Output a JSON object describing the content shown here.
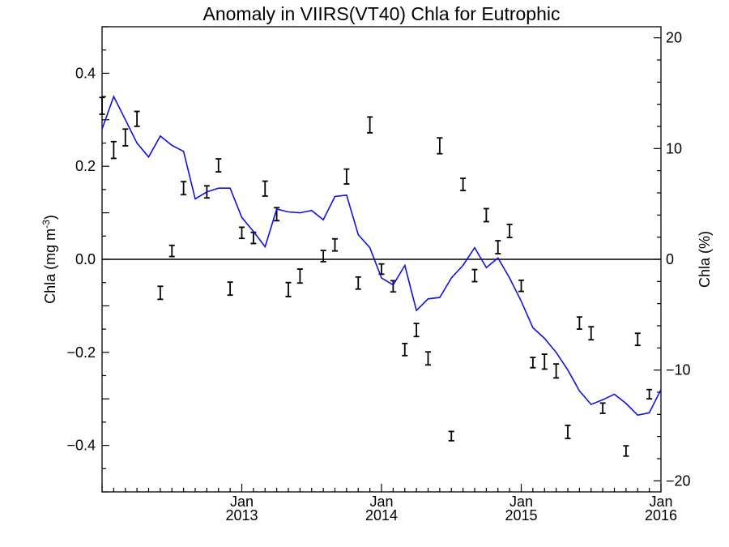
{
  "chart_data": {
    "type": "line",
    "title": "Anomaly in VIIRS(VT40) Chla for Eutrophic",
    "ylabel_left": "Chla (mg m",
    "ylabel_left_sup": "-3",
    "ylabel_left_close": ")",
    "ylabel_right": "Chla (%)",
    "ylim_left": [
      -0.5,
      0.5
    ],
    "ylim_right": [
      -21,
      21
    ],
    "left_ticks": [
      {
        "v": 0.4,
        "label": "0.4"
      },
      {
        "v": 0.2,
        "label": "0.2"
      },
      {
        "v": 0.0,
        "label": "0.0"
      },
      {
        "v": -0.2,
        "label": "−0.2"
      },
      {
        "v": -0.4,
        "label": "−0.4"
      }
    ],
    "right_ticks": [
      {
        "v": 20,
        "label": "20"
      },
      {
        "v": 10,
        "label": "10"
      },
      {
        "v": 0,
        "label": "0"
      },
      {
        "v": -10,
        "label": "−10"
      },
      {
        "v": -20,
        "label": "−20"
      }
    ],
    "xlim_months": [
      0,
      48
    ],
    "x_ticks": [
      {
        "m": 12,
        "month": "Jan",
        "year": "2013"
      },
      {
        "m": 24,
        "month": "Jan",
        "year": "2014"
      },
      {
        "m": 36,
        "month": "Jan",
        "year": "2015"
      },
      {
        "m": 48,
        "month": "Jan",
        "year": "2016"
      }
    ],
    "x_axis_start": "2012-01",
    "series": [
      {
        "x_months": [
          0,
          1,
          2,
          3,
          4,
          5,
          6,
          7,
          8,
          9,
          10,
          11,
          12,
          13,
          14,
          15,
          16,
          17,
          18,
          19,
          20,
          21,
          22,
          23,
          24,
          25,
          26,
          27,
          28,
          29,
          30,
          31,
          32,
          33,
          34,
          35,
          36,
          37,
          38,
          39,
          40,
          41,
          42,
          43,
          44,
          45,
          46,
          47,
          48
        ],
        "values": [
          0.28,
          0.35,
          0.3,
          0.25,
          0.22,
          0.265,
          0.245,
          0.232,
          0.13,
          0.145,
          0.153,
          0.153,
          0.09,
          0.06,
          0.027,
          0.108,
          0.102,
          0.1,
          0.105,
          0.085,
          0.135,
          0.138,
          0.053,
          0.025,
          -0.04,
          -0.055,
          -0.013,
          -0.11,
          -0.085,
          -0.082,
          -0.04,
          -0.013,
          0.025,
          -0.018,
          0.003,
          -0.04,
          -0.09,
          -0.147,
          -0.17,
          -0.2,
          -0.238,
          -0.283,
          -0.312,
          -0.302,
          -0.29,
          -0.31,
          -0.335,
          -0.33,
          -0.28
        ]
      }
    ],
    "errorbars": [
      {
        "x": 0,
        "y": 0.33,
        "e": 0.018
      },
      {
        "x": 1,
        "y": 0.235,
        "e": 0.018
      },
      {
        "x": 2,
        "y": 0.262,
        "e": 0.018
      },
      {
        "x": 3,
        "y": 0.302,
        "e": 0.016
      },
      {
        "x": 5,
        "y": -0.072,
        "e": 0.014
      },
      {
        "x": 6,
        "y": 0.018,
        "e": 0.012
      },
      {
        "x": 7,
        "y": 0.153,
        "e": 0.014
      },
      {
        "x": 9,
        "y": 0.145,
        "e": 0.013
      },
      {
        "x": 10,
        "y": 0.202,
        "e": 0.014
      },
      {
        "x": 11,
        "y": -0.063,
        "e": 0.014
      },
      {
        "x": 12,
        "y": 0.057,
        "e": 0.012
      },
      {
        "x": 13,
        "y": 0.046,
        "e": 0.012
      },
      {
        "x": 14,
        "y": 0.152,
        "e": 0.016
      },
      {
        "x": 15,
        "y": 0.097,
        "e": 0.014
      },
      {
        "x": 16,
        "y": -0.065,
        "e": 0.015
      },
      {
        "x": 17,
        "y": -0.036,
        "e": 0.015
      },
      {
        "x": 19,
        "y": 0.007,
        "e": 0.012
      },
      {
        "x": 20,
        "y": 0.031,
        "e": 0.013
      },
      {
        "x": 21,
        "y": 0.178,
        "e": 0.016
      },
      {
        "x": 22,
        "y": -0.051,
        "e": 0.013
      },
      {
        "x": 23,
        "y": 0.289,
        "e": 0.017
      },
      {
        "x": 24,
        "y": -0.021,
        "e": 0.011
      },
      {
        "x": 25,
        "y": -0.058,
        "e": 0.012
      },
      {
        "x": 26,
        "y": -0.194,
        "e": 0.013
      },
      {
        "x": 27,
        "y": -0.152,
        "e": 0.014
      },
      {
        "x": 28,
        "y": -0.213,
        "e": 0.014
      },
      {
        "x": 29,
        "y": 0.244,
        "e": 0.017
      },
      {
        "x": 30,
        "y": -0.38,
        "e": 0.01
      },
      {
        "x": 31,
        "y": 0.161,
        "e": 0.013
      },
      {
        "x": 32,
        "y": -0.035,
        "e": 0.013
      },
      {
        "x": 33,
        "y": 0.095,
        "e": 0.014
      },
      {
        "x": 34,
        "y": 0.026,
        "e": 0.014
      },
      {
        "x": 35,
        "y": 0.061,
        "e": 0.014
      },
      {
        "x": 36,
        "y": -0.057,
        "e": 0.012
      },
      {
        "x": 37,
        "y": -0.222,
        "e": 0.011
      },
      {
        "x": 38,
        "y": -0.22,
        "e": 0.016
      },
      {
        "x": 39,
        "y": -0.24,
        "e": 0.015
      },
      {
        "x": 40,
        "y": -0.371,
        "e": 0.014
      },
      {
        "x": 41,
        "y": -0.137,
        "e": 0.013
      },
      {
        "x": 42,
        "y": -0.159,
        "e": 0.014
      },
      {
        "x": 43,
        "y": -0.32,
        "e": 0.011
      },
      {
        "x": 45,
        "y": -0.412,
        "e": 0.011
      },
      {
        "x": 46,
        "y": -0.172,
        "e": 0.013
      },
      {
        "x": 47,
        "y": -0.29,
        "e": 0.01
      }
    ],
    "reference_line_y": 0,
    "colors": {
      "series": "#1010e0",
      "errorbars": "#000000",
      "axes": "#000000"
    },
    "grid": false
  }
}
